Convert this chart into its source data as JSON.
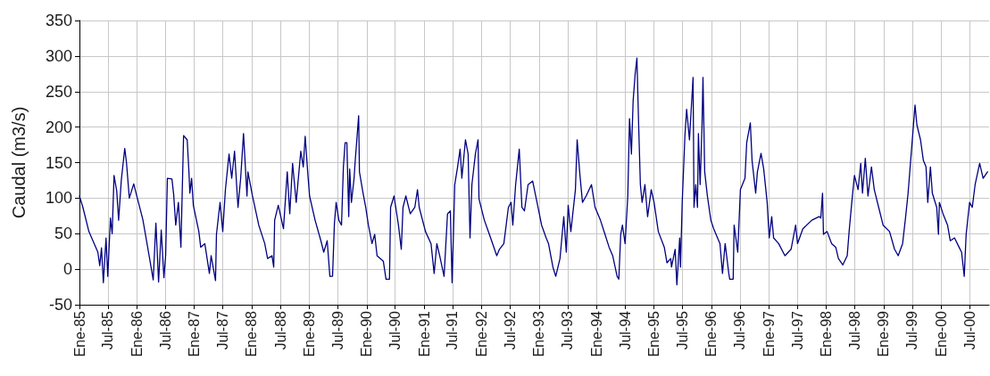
{
  "chart_data": {
    "type": "line",
    "ylabel": "Caudal (m3/s)",
    "x": [
      "1985-01-01",
      "1985-01-23",
      "1985-03-02",
      "1985-04-28",
      "1985-05-10",
      "1985-05-21",
      "1985-06-02",
      "1985-06-19",
      "1985-06-30",
      "1985-07-17",
      "1985-07-28",
      "1985-08-09",
      "1985-08-26",
      "1985-09-07",
      "1985-09-24",
      "1985-10-16",
      "1985-10-27",
      "1985-11-14",
      "1985-12-12",
      "1986-01-04",
      "1986-02-08",
      "1986-03-23",
      "1986-04-15",
      "1986-05-02",
      "1986-05-19",
      "1986-06-05",
      "1986-06-22",
      "1986-07-03",
      "1986-07-14",
      "1986-08-12",
      "1986-08-23",
      "1986-09-05",
      "1986-09-22",
      "1986-10-08",
      "1986-10-25",
      "1986-11-17",
      "1986-11-28",
      "1986-12-04",
      "1986-12-15",
      "1986-12-26",
      "1987-01-30",
      "1987-02-11",
      "1987-03-09",
      "1987-04-07",
      "1987-04-18",
      "1987-05-16",
      "1987-05-22",
      "1987-06-14",
      "1987-07-01",
      "1987-07-18",
      "1987-08-10",
      "1987-08-27",
      "1987-09-14",
      "1987-10-06",
      "1987-10-23",
      "1987-11-10",
      "1987-12-02",
      "1987-12-08",
      "1988-01-06",
      "1988-02-15",
      "1988-03-24",
      "1988-04-11",
      "1988-05-09",
      "1988-05-20",
      "1988-05-26",
      "1988-06-18",
      "1988-07-21",
      "1988-08-14",
      "1988-08-30",
      "1988-09-17",
      "1988-10-10",
      "1988-11-08",
      "1988-11-24",
      "1988-12-06",
      "1988-12-22",
      "1989-01-03",
      "1989-02-07",
      "1989-03-16",
      "1989-04-03",
      "1989-04-25",
      "1989-05-12",
      "1989-05-29",
      "1989-06-10",
      "1989-06-21",
      "1989-07-08",
      "1989-07-25",
      "1989-08-06",
      "1989-08-17",
      "1989-08-28",
      "1989-09-09",
      "1989-09-15",
      "1989-09-26",
      "1989-10-13",
      "1989-10-19",
      "1989-11-11",
      "1989-11-16",
      "1989-12-09",
      "1989-12-26",
      "1990-01-12",
      "1990-02-04",
      "1990-02-21",
      "1990-03-08",
      "1990-04-17",
      "1990-05-04",
      "1990-05-26",
      "1990-06-02",
      "1990-06-24",
      "1990-07-22",
      "1990-08-09",
      "1990-08-20",
      "1990-09-07",
      "1990-10-05",
      "1990-11-03",
      "1990-11-20",
      "1990-12-01",
      "1991-01-10",
      "1991-02-14",
      "1991-03-06",
      "1991-03-23",
      "1991-04-10",
      "1991-05-08",
      "1991-05-30",
      "1991-06-17",
      "1991-06-28",
      "1991-07-15",
      "1991-08-02",
      "1991-08-18",
      "1991-08-29",
      "1991-09-21",
      "1991-10-08",
      "1991-10-20",
      "1991-11-01",
      "1991-11-23",
      "1991-12-10",
      "1991-12-16",
      "1992-01-19",
      "1992-02-28",
      "1992-04-07",
      "1992-04-24",
      "1992-05-22",
      "1992-06-20",
      "1992-07-07",
      "1992-07-18",
      "1992-08-05",
      "1992-08-28",
      "1992-09-14",
      "1992-09-30",
      "1992-10-23",
      "1992-11-21",
      "1992-12-19",
      "1993-01-17",
      "1993-02-15",
      "1993-03-02",
      "1993-03-30",
      "1993-04-17",
      "1993-05-14",
      "1993-06-07",
      "1993-06-23",
      "1993-07-05",
      "1993-07-22",
      "1993-08-20",
      "1993-08-31",
      "1993-09-18",
      "1993-10-04",
      "1993-10-27",
      "1993-11-30",
      "1993-12-23",
      "1994-01-26",
      "1994-02-24",
      "1994-03-22",
      "1994-04-14",
      "1994-05-12",
      "1994-05-23",
      "1994-06-04",
      "1994-06-15",
      "1994-07-02",
      "1994-07-19",
      "1994-07-30",
      "1994-08-11",
      "1994-08-22",
      "1994-09-04",
      "1994-09-15",
      "1994-09-26",
      "1994-10-07",
      "1994-10-18",
      "1994-11-05",
      "1994-11-22",
      "1994-12-15",
      "1995-01-02",
      "1995-01-29",
      "1995-03-08",
      "1995-03-25",
      "1995-04-18",
      "1995-04-23",
      "1995-05-16",
      "1995-05-27",
      "1995-06-14",
      "1995-06-19",
      "1995-06-30",
      "1995-07-17",
      "1995-07-28",
      "1995-08-15",
      "1995-09-07",
      "1995-09-13",
      "1995-09-24",
      "1995-10-05",
      "1995-10-11",
      "1995-10-22",
      "1995-11-03",
      "1995-11-09",
      "1995-11-20",
      "1995-12-07",
      "1995-12-29",
      "1996-01-16",
      "1996-02-25",
      "1996-03-12",
      "1996-03-29",
      "1996-04-21",
      "1996-04-27",
      "1996-05-19",
      "1996-05-25",
      "1996-06-17",
      "1996-07-04",
      "1996-08-02",
      "1996-08-13",
      "1996-09-05",
      "1996-09-16",
      "1996-10-09",
      "1996-10-20",
      "1996-11-12",
      "1996-11-29",
      "1996-12-21",
      "1997-01-03",
      "1997-01-19",
      "1997-01-31",
      "1997-03-04",
      "1997-04-13",
      "1997-05-22",
      "1997-06-20",
      "1997-07-02",
      "1997-08-05",
      "1997-10-01",
      "1997-11-16",
      "1997-11-27",
      "1997-12-08",
      "1997-12-14",
      "1998-01-06",
      "1998-02-04",
      "1998-03-02",
      "1998-03-19",
      "1998-04-16",
      "1998-05-14",
      "1998-05-26",
      "1998-06-12",
      "1998-06-29",
      "1998-07-22",
      "1998-08-08",
      "1998-08-19",
      "1998-09-06",
      "1998-09-23",
      "1998-10-15",
      "1998-11-02",
      "1998-11-30",
      "1998-12-28",
      "1999-02-07",
      "1999-03-11",
      "1999-04-03",
      "1999-05-01",
      "1999-05-18",
      "1999-06-05",
      "1999-06-27",
      "1999-07-19",
      "1999-07-31",
      "1999-08-23",
      "1999-09-10",
      "1999-09-27",
      "1999-10-08",
      "1999-10-25",
      "1999-11-06",
      "1999-12-04",
      "1999-12-15",
      "1999-12-21",
      "2000-01-13",
      "2000-02-11",
      "2000-02-28",
      "2000-03-26",
      "2000-04-24",
      "2000-05-10",
      "2000-05-27",
      "2000-06-08",
      "2000-06-30",
      "2000-07-17",
      "2000-08-04",
      "2000-09-02",
      "2000-09-24",
      "2000-10-22"
    ],
    "series": [
      {
        "color": "#000080",
        "values": [
          103,
          87,
          53,
          24,
          5,
          30,
          -19,
          44,
          -10,
          72,
          50,
          132,
          110,
          69,
          125,
          170,
          150,
          100,
          120,
          100,
          70,
          15,
          -15,
          65,
          -18,
          55,
          -12,
          20,
          128,
          127,
          105,
          62,
          94,
          31,
          188,
          182,
          137,
          107,
          128,
          90,
          53,
          31,
          36,
          -6,
          19,
          -16,
          49,
          94,
          53,
          112,
          162,
          128,
          166,
          87,
          128,
          191,
          103,
          137,
          103,
          62,
          36,
          15,
          19,
          3,
          69,
          90,
          57,
          137,
          78,
          149,
          94,
          166,
          144,
          187,
          137,
          103,
          69,
          40,
          24,
          40,
          -10,
          -10,
          65,
          94,
          69,
          62,
          144,
          178,
          178,
          74,
          141,
          94,
          128,
          149,
          216,
          137,
          107,
          87,
          62,
          36,
          49,
          19,
          11,
          -14,
          -14,
          87,
          103,
          62,
          28,
          87,
          103,
          78,
          87,
          112,
          87,
          53,
          36,
          -6,
          36,
          19,
          -10,
          78,
          82,
          -19,
          119,
          144,
          169,
          128,
          182,
          162,
          44,
          119,
          162,
          182,
          99,
          69,
          44,
          19,
          28,
          36,
          87,
          94,
          62,
          119,
          169,
          87,
          82,
          119,
          124,
          94,
          62,
          44,
          36,
          3,
          -10,
          15,
          74,
          24,
          90,
          53,
          112,
          182,
          132,
          94,
          103,
          119,
          87,
          69,
          49,
          31,
          19,
          -10,
          -14,
          49,
          62,
          36,
          103,
          212,
          162,
          237,
          275,
          297,
          203,
          119,
          94,
          119,
          74,
          112,
          94,
          53,
          31,
          9,
          15,
          3,
          28,
          -22,
          44,
          3,
          94,
          187,
          225,
          182,
          270,
          87,
          119,
          87,
          191,
          119,
          203,
          270,
          137,
          103,
          69,
          57,
          36,
          -6,
          36,
          -6,
          -14,
          -14,
          62,
          24,
          112,
          128,
          178,
          206,
          153,
          107,
          137,
          163,
          141,
          94,
          44,
          74,
          44,
          36,
          19,
          28,
          62,
          36,
          57,
          69,
          74,
          72,
          107,
          49,
          53,
          36,
          31,
          15,
          6,
          19,
          53,
          94,
          132,
          112,
          149,
          107,
          156,
          103,
          144,
          112,
          87,
          62,
          53,
          28,
          19,
          36,
          69,
          107,
          169,
          231,
          203,
          182,
          153,
          144,
          94,
          144,
          107,
          87,
          49,
          94,
          78,
          62,
          40,
          44,
          31,
          24,
          -10,
          49,
          94,
          87,
          119,
          149,
          128,
          137
        ]
      }
    ],
    "xlim": [
      "1985-01-01",
      "2000-11-01"
    ],
    "ylim": [
      -50,
      350
    ],
    "xticks": [
      {
        "value": "1985-01",
        "label": "Ene-85"
      },
      {
        "value": "1985-07",
        "label": "Jul-85"
      },
      {
        "value": "1986-01",
        "label": "Ene-86"
      },
      {
        "value": "1986-07",
        "label": "Jul-86"
      },
      {
        "value": "1987-01",
        "label": "Ene-87"
      },
      {
        "value": "1987-07",
        "label": "Jul-87"
      },
      {
        "value": "1988-01",
        "label": "Ene-88"
      },
      {
        "value": "1988-07",
        "label": "Jul-88"
      },
      {
        "value": "1989-01",
        "label": "Ene-89"
      },
      {
        "value": "1989-07",
        "label": "Jul-89"
      },
      {
        "value": "1990-01",
        "label": "Ene-90"
      },
      {
        "value": "1990-07",
        "label": "Jul-90"
      },
      {
        "value": "1991-01",
        "label": "Ene-91"
      },
      {
        "value": "1991-07",
        "label": "Jul-91"
      },
      {
        "value": "1992-01",
        "label": "Ene-92"
      },
      {
        "value": "1992-07",
        "label": "Jul-92"
      },
      {
        "value": "1993-01",
        "label": "Ene-93"
      },
      {
        "value": "1993-07",
        "label": "Jul-93"
      },
      {
        "value": "1994-01",
        "label": "Ene-94"
      },
      {
        "value": "1994-07",
        "label": "Jul-94"
      },
      {
        "value": "1995-01",
        "label": "Ene-95"
      },
      {
        "value": "1995-07",
        "label": "Jul-95"
      },
      {
        "value": "1996-01",
        "label": "Ene-96"
      },
      {
        "value": "1996-07",
        "label": "Jul-96"
      },
      {
        "value": "1997-01",
        "label": "Ene-97"
      },
      {
        "value": "1997-07",
        "label": "Jul-97"
      },
      {
        "value": "1998-01",
        "label": "Ene-98"
      },
      {
        "value": "1998-07",
        "label": "Jul-98"
      },
      {
        "value": "1999-01",
        "label": "Ene-99"
      },
      {
        "value": "1999-07",
        "label": "Jul-99"
      },
      {
        "value": "2000-01",
        "label": "Ene-00"
      },
      {
        "value": "2000-07",
        "label": "Jul-00"
      }
    ],
    "yticks": [
      -50,
      0,
      50,
      100,
      150,
      200,
      250,
      300,
      350
    ],
    "grid": true
  }
}
